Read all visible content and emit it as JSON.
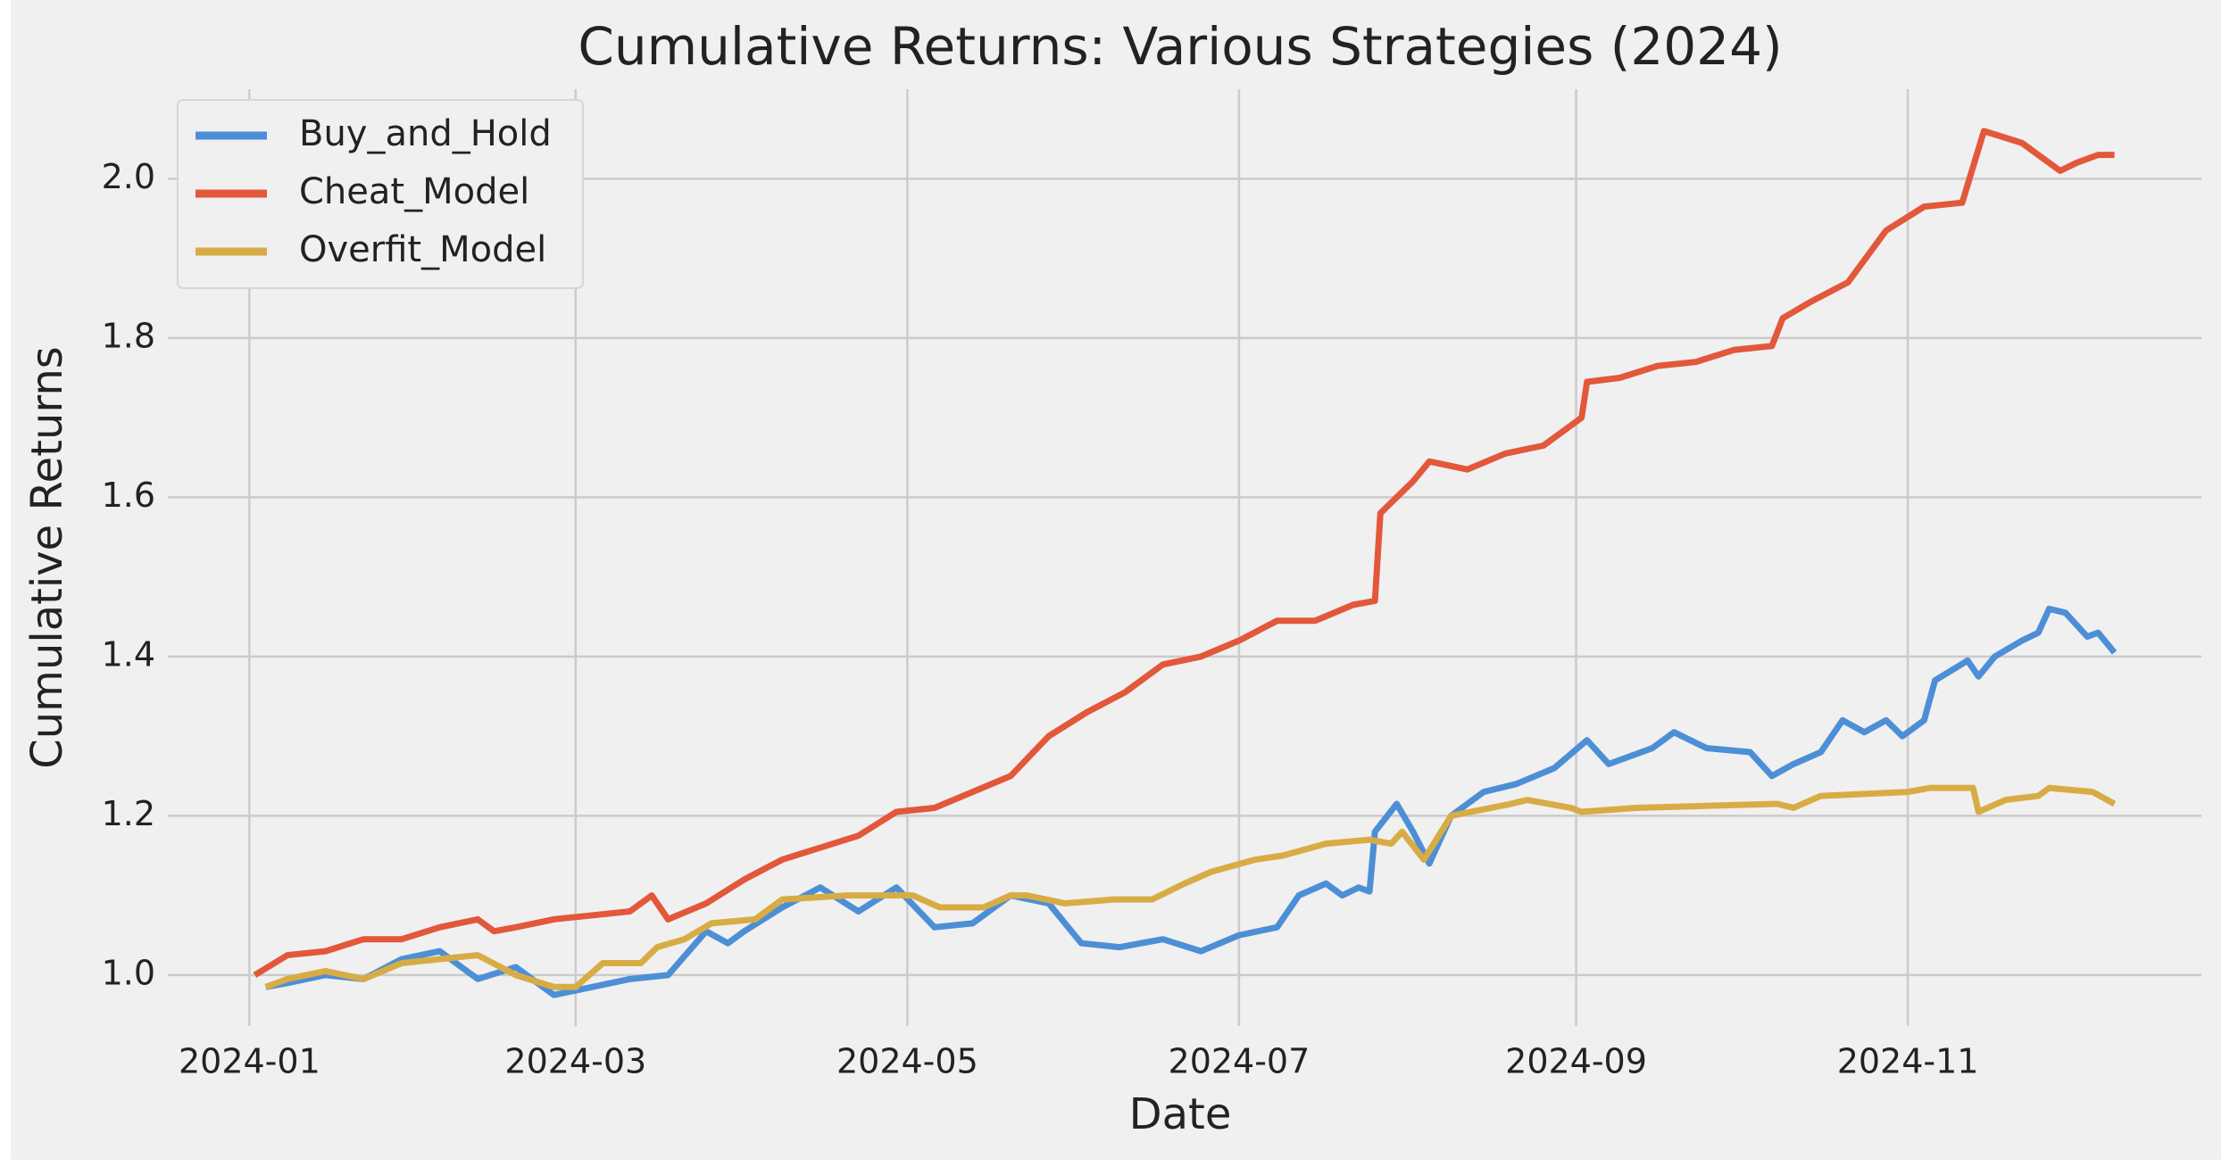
{
  "chart_data": {
    "type": "line",
    "title": "Cumulative Returns: Various Strategies (2024)",
    "x_label": "Date",
    "y_label": "Cumulative Returns",
    "xlim": [
      -15,
      359
    ],
    "ylim": [
      0.936,
      2.1125
    ],
    "xticks": [
      {
        "value": 0,
        "label": "2024-01"
      },
      {
        "value": 60,
        "label": "2024-03"
      },
      {
        "value": 121,
        "label": "2024-05"
      },
      {
        "value": 182,
        "label": "2024-07"
      },
      {
        "value": 244,
        "label": "2024-09"
      },
      {
        "value": 305,
        "label": "2024-11"
      }
    ],
    "yticks": [
      {
        "value": 1,
        "label": "1.0"
      },
      1.2,
      1.4,
      1.6,
      1.8,
      {
        "value": 2,
        "label": "2.0"
      }
    ],
    "grid": true,
    "legend": "upper left",
    "series": [
      {
        "name": "Buy_and_Hold",
        "color": "#4d8fd6",
        "x": [
          3,
          7,
          14,
          21,
          28,
          35,
          42,
          49,
          56,
          63,
          70,
          77,
          84,
          88,
          91,
          98,
          105,
          112,
          119,
          126,
          133,
          140,
          147,
          153,
          160,
          168,
          175,
          182,
          189,
          193,
          198,
          201,
          204,
          206,
          207,
          211,
          214,
          217,
          221,
          227,
          233,
          240,
          246,
          250,
          258,
          262,
          268,
          276,
          280,
          284,
          289,
          293,
          297,
          301,
          304,
          308,
          310,
          316,
          318,
          321,
          326,
          329,
          331,
          334,
          338,
          340,
          343
        ],
        "values": [
          0.985,
          0.99,
          1.0,
          0.995,
          1.02,
          1.03,
          0.995,
          1.01,
          0.975,
          0.985,
          0.995,
          1.0,
          1.055,
          1.04,
          1.055,
          1.085,
          1.11,
          1.08,
          1.11,
          1.06,
          1.065,
          1.1,
          1.09,
          1.04,
          1.035,
          1.045,
          1.03,
          1.05,
          1.06,
          1.1,
          1.115,
          1.1,
          1.11,
          1.105,
          1.18,
          1.215,
          1.18,
          1.14,
          1.2,
          1.23,
          1.24,
          1.26,
          1.295,
          1.265,
          1.285,
          1.305,
          1.285,
          1.28,
          1.25,
          1.265,
          1.28,
          1.32,
          1.305,
          1.32,
          1.3,
          1.32,
          1.37,
          1.395,
          1.375,
          1.4,
          1.42,
          1.43,
          1.46,
          1.455,
          1.425,
          1.43,
          1.405
        ]
      },
      {
        "name": "Cheat_Model",
        "color": "#e3573b",
        "x": [
          1,
          7,
          14,
          21,
          28,
          35,
          42,
          45,
          49,
          56,
          63,
          70,
          74,
          77,
          84,
          91,
          98,
          105,
          112,
          119,
          126,
          133,
          140,
          147,
          154,
          161,
          168,
          175,
          182,
          189,
          196,
          203,
          207,
          208,
          214,
          217,
          224,
          231,
          238,
          245,
          246,
          252,
          259,
          266,
          273,
          280,
          282,
          287,
          294,
          301,
          308,
          315,
          319,
          326,
          333,
          336,
          340,
          343
        ],
        "values": [
          1.0,
          1.025,
          1.03,
          1.045,
          1.045,
          1.06,
          1.07,
          1.055,
          1.06,
          1.07,
          1.075,
          1.08,
          1.1,
          1.07,
          1.09,
          1.12,
          1.145,
          1.16,
          1.175,
          1.205,
          1.21,
          1.23,
          1.25,
          1.3,
          1.33,
          1.355,
          1.39,
          1.4,
          1.42,
          1.445,
          1.445,
          1.465,
          1.47,
          1.58,
          1.62,
          1.645,
          1.635,
          1.655,
          1.665,
          1.7,
          1.745,
          1.75,
          1.765,
          1.77,
          1.785,
          1.79,
          1.825,
          1.845,
          1.87,
          1.935,
          1.965,
          1.97,
          2.06,
          2.045,
          2.01,
          2.02,
          2.03,
          2.03
        ]
      },
      {
        "name": "Overfit_Model",
        "color": "#d8ac45",
        "x": [
          3,
          7,
          14,
          21,
          28,
          35,
          42,
          49,
          56,
          60,
          65,
          72,
          75,
          80,
          85,
          93,
          98,
          110,
          122,
          127,
          135,
          140,
          143,
          150,
          159,
          166,
          172,
          177,
          185,
          190,
          198,
          206,
          210,
          212,
          216,
          221,
          232,
          235,
          243,
          245,
          255,
          281,
          284,
          289,
          305,
          309,
          317,
          318,
          323,
          329,
          331,
          339,
          343
        ],
        "values": [
          0.985,
          0.995,
          1.005,
          0.995,
          1.015,
          1.02,
          1.025,
          1.0,
          0.985,
          0.985,
          1.015,
          1.015,
          1.035,
          1.045,
          1.065,
          1.07,
          1.095,
          1.1,
          1.1,
          1.085,
          1.085,
          1.1,
          1.1,
          1.09,
          1.095,
          1.095,
          1.115,
          1.13,
          1.145,
          1.15,
          1.165,
          1.17,
          1.165,
          1.18,
          1.145,
          1.2,
          1.215,
          1.22,
          1.21,
          1.205,
          1.21,
          1.215,
          1.21,
          1.225,
          1.23,
          1.235,
          1.235,
          1.205,
          1.22,
          1.225,
          1.235,
          1.23,
          1.215
        ]
      }
    ]
  }
}
